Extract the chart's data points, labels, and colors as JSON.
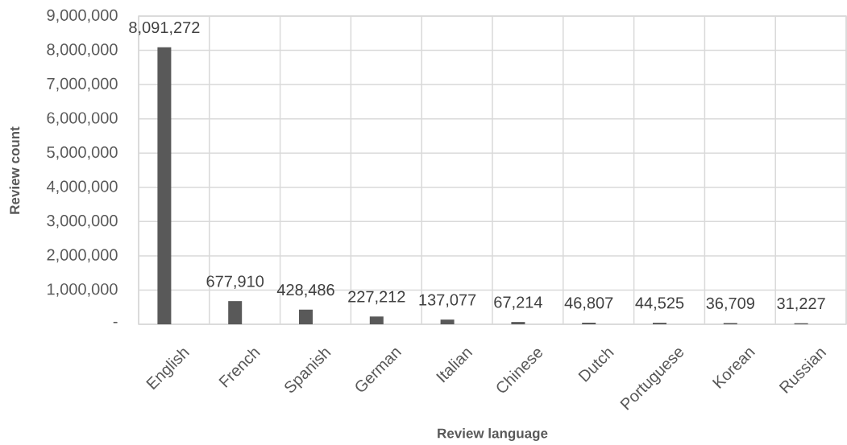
{
  "chart_data": {
    "type": "bar",
    "xlabel": "Review language",
    "ylabel": "Review count",
    "categories": [
      "English",
      "French",
      "Spanish",
      "German",
      "Italian",
      "Chinese",
      "Dutch",
      "Portuguese",
      "Korean",
      "Russian"
    ],
    "values": [
      8091272,
      677910,
      428486,
      227212,
      137077,
      67214,
      46807,
      44525,
      36709,
      31227
    ],
    "value_labels": [
      "8,091,272",
      "677,910",
      "428,486",
      "227,212",
      "137,077",
      "67,214",
      "46,807",
      "44,525",
      "36,709",
      "31,227"
    ],
    "color": "#595959",
    "ylim": [
      0,
      9000000
    ],
    "yticks": [
      {
        "value": 0,
        "label": "-"
      },
      {
        "value": 1000000,
        "label": "1,000,000"
      },
      {
        "value": 2000000,
        "label": "2,000,000"
      },
      {
        "value": 3000000,
        "label": "3,000,000"
      },
      {
        "value": 4000000,
        "label": "4,000,000"
      },
      {
        "value": 5000000,
        "label": "5,000,000"
      },
      {
        "value": 6000000,
        "label": "6,000,000"
      },
      {
        "value": 7000000,
        "label": "7,000,000"
      },
      {
        "value": 8000000,
        "label": "8,000,000"
      },
      {
        "value": 9000000,
        "label": "9,000,000"
      }
    ],
    "grid": true
  }
}
